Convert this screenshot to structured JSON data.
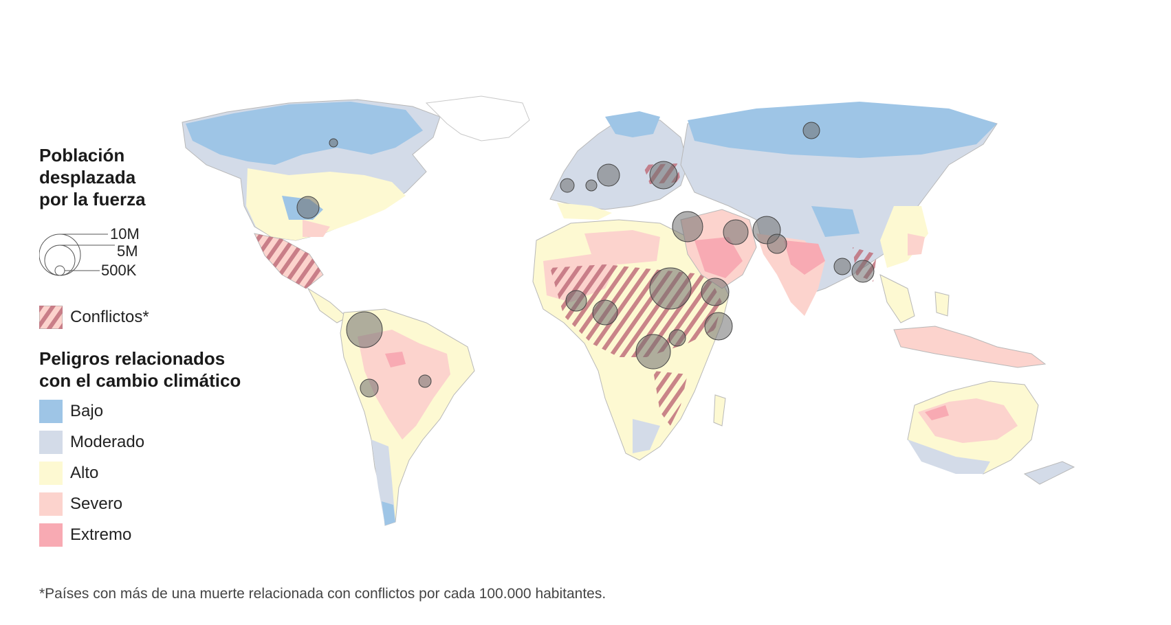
{
  "legend": {
    "population_title_lines": [
      "Población",
      "desplazada",
      "por la fuerza"
    ],
    "bubble_sizes": [
      {
        "label": "10M",
        "value": 10000000
      },
      {
        "label": "5M",
        "value": 5000000
      },
      {
        "label": "500K",
        "value": 500000
      }
    ],
    "conflict_label": "Conflictos*",
    "hazards_title_lines": [
      "Peligros relacionados",
      "con el cambio climático"
    ],
    "hazard_levels": [
      {
        "label": "Bajo",
        "color": "#9ec5e6"
      },
      {
        "label": "Moderado",
        "color": "#d3dbe8"
      },
      {
        "label": "Alto",
        "color": "#fdf9d2"
      },
      {
        "label": "Severo",
        "color": "#fcd3cd"
      },
      {
        "label": "Extremo",
        "color": "#f8aab3"
      }
    ]
  },
  "colors": {
    "conflict_stripe": "#c0707c",
    "bubble_fill": "#707070",
    "border": "#b8b8b8"
  },
  "footnote": "*Países con más de una muerte relacionada con conflictos por cada 100.000 habitantes."
}
